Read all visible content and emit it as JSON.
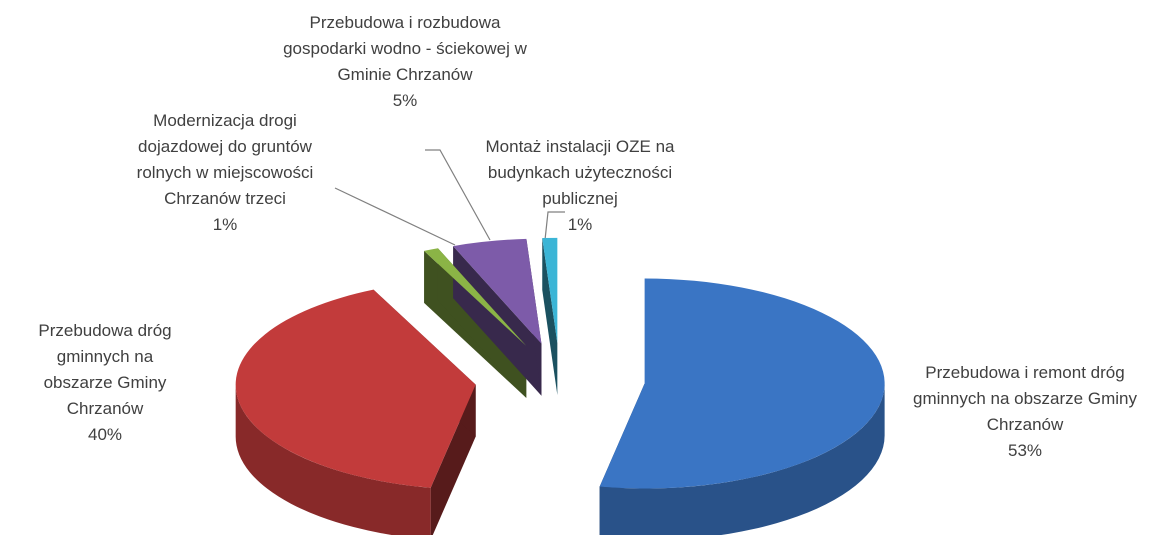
{
  "chart_data": {
    "type": "pie",
    "categories": [
      "Przebudowa i remont dróg gminnych na obszarze Gminy Chrzanów",
      "Przebudowa dróg gminnych na obszarze Gminy Chrzanów",
      "Modernizacja drogi dojazdowej do gruntów rolnych w miejscowości Chrzanów trzeci",
      "Przebudowa i rozbudowa gospodarki wodno - ściekowej w Gminie Chrzanów",
      "Montaż instalacji OZE na budynkach użyteczności publicznej"
    ],
    "values": [
      53,
      40,
      1,
      5,
      1
    ],
    "value_labels": [
      "53%",
      "40%",
      "1%",
      "5%",
      "1%"
    ],
    "colors": [
      "#3a75c4",
      "#c23b3b",
      "#8bb446",
      "#7d5ba9",
      "#3bb5d6"
    ]
  }
}
